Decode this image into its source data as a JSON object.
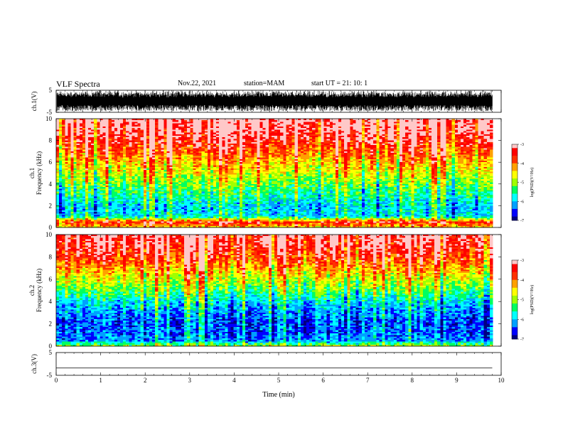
{
  "header": {
    "title": "VLF Spectra",
    "date": "Nov.22, 2021",
    "station": "station=MAM",
    "start": "start UT = 21: 10: 1"
  },
  "colors": {
    "colormap": [
      "#000080",
      "#0000ff",
      "#00a0ff",
      "#00ffff",
      "#00ff60",
      "#a0ff00",
      "#ffff00",
      "#ffa000",
      "#ff3000",
      "#ff0000",
      "#ffc8c8"
    ],
    "waveform": "#000000",
    "axis": "#000000"
  },
  "chart_data": [
    {
      "type": "line",
      "ylabel": "ch.1(V)",
      "ylim": [
        -5,
        5
      ],
      "yticks": [
        "5",
        "-5"
      ],
      "description_values": "dense VLF waveform filling roughly -5 to 5 V across 0–9.8 min",
      "x_range": [
        0,
        9.8
      ],
      "amplitude_min": -5,
      "amplitude_max": 5
    },
    {
      "type": "heatmap",
      "ylabel_line1": "ch.1",
      "ylabel_line2": "Frequency (kHz)",
      "ylim": [
        0,
        10
      ],
      "yticks": [
        "0",
        "2",
        "4",
        "6",
        "8",
        "10"
      ],
      "x_range": [
        0,
        9.8
      ],
      "colorbar": {
        "label": "log(PSD)(V²/Hz)",
        "range": [
          -7,
          -3
        ],
        "ticks": [
          "-3",
          "-4",
          "-5",
          "-6",
          "-7"
        ]
      },
      "profile_freq_khz": [
        0,
        0.5,
        1,
        2,
        3,
        4,
        5,
        6,
        7,
        8,
        9,
        10
      ],
      "profile_logpsd": [
        -4.5,
        -3.6,
        -5.9,
        -6.0,
        -5.6,
        -5.2,
        -4.8,
        -4.4,
        -3.9,
        -3.5,
        -3.2,
        -3.1
      ]
    },
    {
      "type": "heatmap",
      "ylabel_line1": "ch.2",
      "ylabel_line2": "Frequency (kHz)",
      "ylim": [
        0,
        10
      ],
      "yticks": [
        "0",
        "2",
        "4",
        "6",
        "8",
        "10"
      ],
      "x_range": [
        0,
        9.8
      ],
      "colorbar": {
        "label": "log(PSD)(V²/Hz)",
        "range": [
          -7,
          -3
        ],
        "ticks": [
          "-3",
          "-4",
          "-5",
          "-6",
          "-7"
        ]
      },
      "profile_freq_khz": [
        0,
        0.5,
        1,
        2,
        3,
        4,
        5,
        6,
        7,
        8,
        9,
        10
      ],
      "profile_logpsd": [
        -4.8,
        -6.2,
        -6.3,
        -6.4,
        -6.2,
        -5.8,
        -5.2,
        -4.7,
        -4.1,
        -3.6,
        -3.2,
        -3.1
      ]
    },
    {
      "type": "line",
      "ylabel": "ch.3(V)",
      "ylim": [
        -5,
        5
      ],
      "yticks": [
        "5",
        "-5"
      ],
      "x": [
        0,
        9.8
      ],
      "y": [
        -1.8,
        -1.8
      ]
    }
  ],
  "xaxis": {
    "label": "Time (min)",
    "range": [
      0,
      10
    ],
    "ticks": [
      "0",
      "1",
      "2",
      "3",
      "4",
      "5",
      "6",
      "7",
      "8",
      "9",
      "10"
    ]
  }
}
